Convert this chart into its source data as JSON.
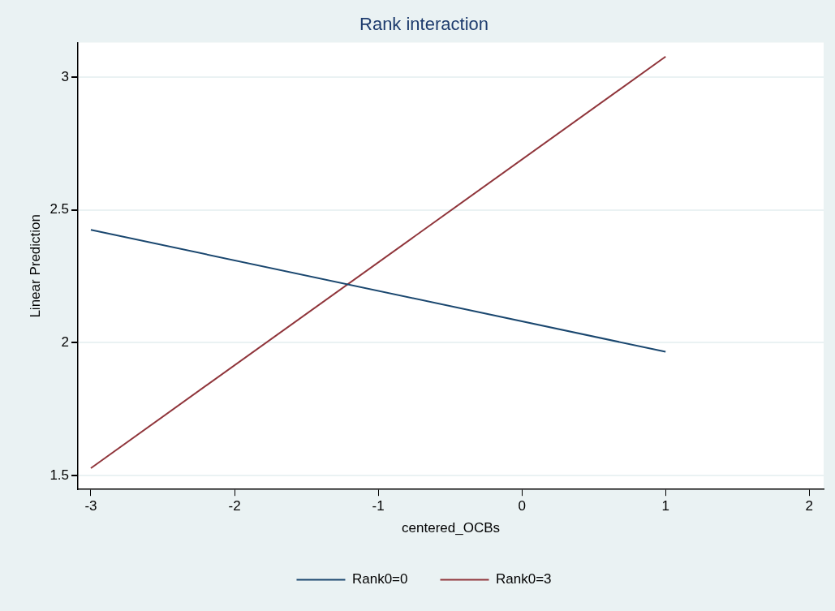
{
  "chart_data": {
    "type": "line",
    "title": "Rank interaction",
    "xlabel": "centered_OCBs",
    "ylabel": "Linear Prediction",
    "x": [
      -3,
      1
    ],
    "series": [
      {
        "name": "Rank0=0",
        "color": "#1a476f",
        "values": [
          2.425,
          1.966
        ]
      },
      {
        "name": "Rank0=3",
        "color": "#90353b",
        "values": [
          1.528,
          3.077
        ]
      }
    ],
    "xlim": [
      -3.09,
      2.1
    ],
    "xticks": [
      -3,
      -2,
      -1,
      0,
      1,
      2
    ],
    "ylim": [
      1.448,
      3.13
    ],
    "yticks": [
      1.5,
      2,
      2.5,
      3
    ],
    "grid": "y",
    "legend": "bottom",
    "marker": "none",
    "line_style": "solid"
  }
}
